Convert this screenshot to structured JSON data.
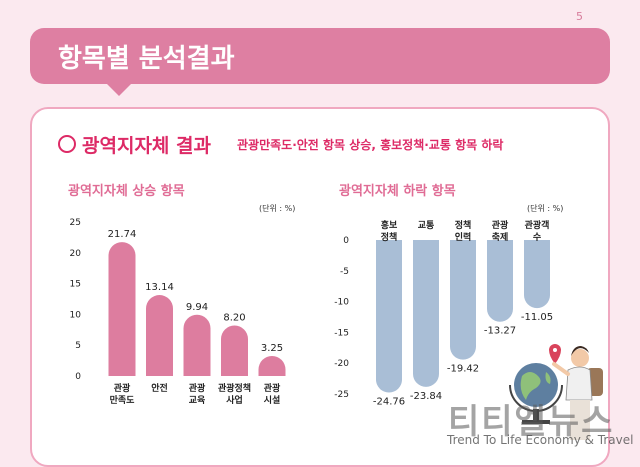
{
  "page_number": "5",
  "header": {
    "title": "항목별 분석결과"
  },
  "section": {
    "heading": "광역지자체 결과",
    "subheading": "관광만족도·안전 항목 상승, 홍보정책·교통 항목 하락"
  },
  "colors": {
    "accent": "#dd2a66",
    "bar_up": "#dd7d9f",
    "bar_down": "#a9bed6",
    "title_bar": "#de7fa2"
  },
  "chart_data": [
    {
      "type": "bar",
      "title": "광역지자체 상승 항목",
      "unit_label": "(단위 : %)",
      "categories": [
        "관광\n만족도",
        "안전",
        "관광\n교육",
        "관광정책\n사업",
        "관광\n시설"
      ],
      "values": [
        21.74,
        13.14,
        9.94,
        8.2,
        3.25
      ],
      "value_labels": [
        "21.74",
        "13.14",
        "9.94",
        "8.20",
        "3.25"
      ],
      "ylim": [
        0,
        25
      ],
      "yticks": [
        0,
        5,
        10,
        15,
        20,
        25
      ],
      "grid": false
    },
    {
      "type": "bar",
      "title": "광역지자체 하락 항목",
      "unit_label": "(단위 : %)",
      "categories": [
        "홍보\n정책",
        "교통",
        "정책\n인력",
        "관광\n축제",
        "관광객\n수"
      ],
      "values": [
        -24.76,
        -23.84,
        -19.42,
        -13.27,
        -11.05
      ],
      "value_labels": [
        "-24.76",
        "-23.84",
        "-19.42",
        "-13.27",
        "-11.05"
      ],
      "ylim": [
        -25,
        0
      ],
      "yticks": [
        0,
        -5,
        -10,
        -15,
        -20,
        -25
      ],
      "grid": false
    }
  ],
  "watermark": {
    "korean": "티티엘뉴스",
    "english": "Trend To Life Economy & Travel"
  }
}
